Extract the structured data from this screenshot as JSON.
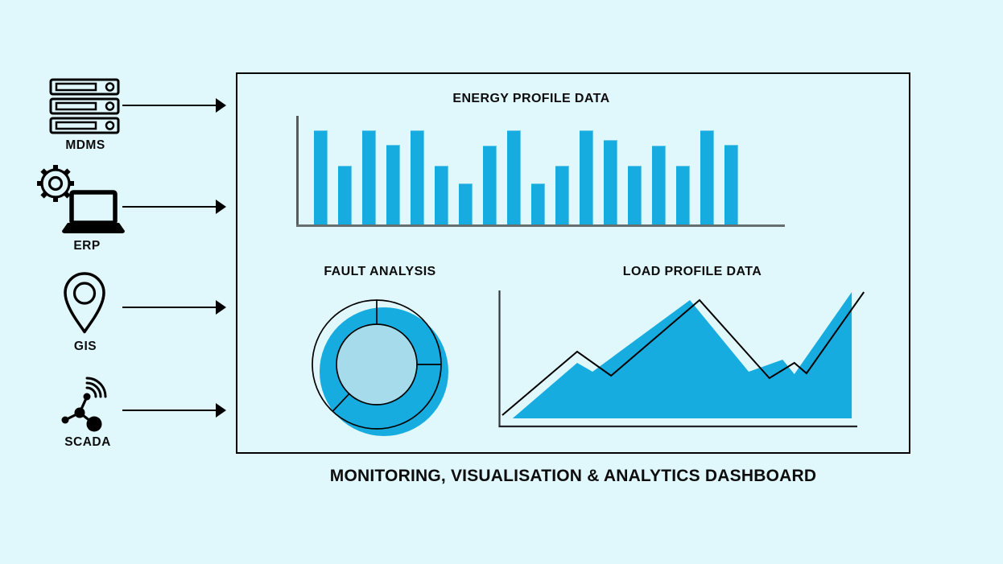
{
  "page": {
    "background_color": "#E0F7FC",
    "accent_color": "#17ACDF",
    "outline_color": "#000000"
  },
  "dashboard": {
    "title": "MONITORING, VISUALISATION & ANALYTICS DASHBOARD"
  },
  "sources": [
    {
      "label": "MDMS",
      "icon": "server-stack-icon"
    },
    {
      "label": "ERP",
      "icon": "gear-laptop-icon"
    },
    {
      "label": "GIS",
      "icon": "map-pin-icon"
    },
    {
      "label": "SCADA",
      "icon": "network-signal-icon"
    }
  ],
  "chart_data": [
    {
      "type": "bar",
      "title": "ENERGY PROFILE DATA",
      "values": [
        100,
        62,
        100,
        85,
        100,
        62,
        44,
        84,
        100,
        44,
        62,
        100,
        90,
        62,
        84,
        62,
        100,
        85
      ],
      "ylim": [
        0,
        100
      ],
      "bar_color": "#17ACDF",
      "axis_color": "#565d5f",
      "grid": false,
      "legend": "none"
    },
    {
      "type": "donut",
      "title": "FAULT ANALYSIS",
      "segments": [
        25,
        37,
        38
      ],
      "ring_color": "#17ACDF",
      "hole_color": "#A6DBEC",
      "outline_color": "#000000",
      "legend": "none"
    },
    {
      "type": "area-line",
      "title": "LOAD PROFILE DATA",
      "xlim": [
        0,
        100
      ],
      "ylim": [
        0,
        100
      ],
      "grid": false,
      "legend": "none",
      "area_series": {
        "name": "load-filled-area",
        "color": "#17ACDF",
        "points": [
          [
            3.8,
            6
          ],
          [
            21.9,
            47.3
          ],
          [
            26.2,
            40.7
          ],
          [
            53.5,
            94
          ],
          [
            70,
            40.7
          ],
          [
            79.5,
            49.7
          ],
          [
            82.8,
            38.9
          ],
          [
            98.9,
            100
          ]
        ]
      },
      "line_series": {
        "name": "load-trend-line",
        "color": "#000000",
        "points": [
          [
            0.9,
            8.4
          ],
          [
            21.9,
            55.7
          ],
          [
            31.4,
            37.7
          ],
          [
            56.2,
            94
          ],
          [
            75.8,
            35.9
          ],
          [
            82.8,
            47.3
          ],
          [
            86.2,
            39.5
          ],
          [
            102.3,
            100
          ]
        ]
      }
    }
  ]
}
